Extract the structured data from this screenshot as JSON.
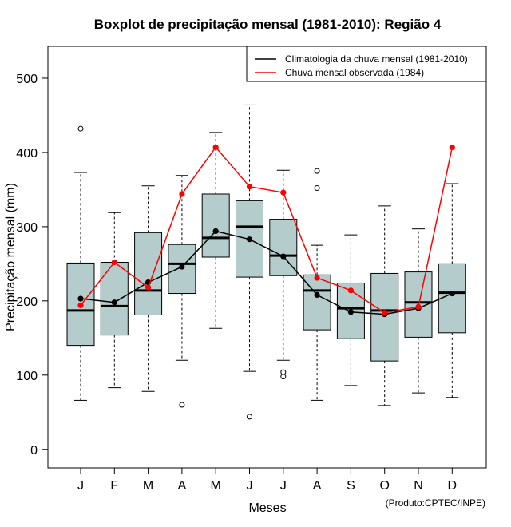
{
  "chart_data": {
    "type": "boxplot",
    "title": "Boxplot de precipitação mensal (1981-2010): Região 4",
    "xlabel": "Meses",
    "ylabel": "Precipitação mensal (mm)",
    "ylim": [
      -25,
      543
    ],
    "yticks": [
      0,
      100,
      200,
      300,
      400,
      500
    ],
    "categories": [
      "J",
      "F",
      "M",
      "A",
      "M",
      "J",
      "J",
      "A",
      "S",
      "O",
      "N",
      "D"
    ],
    "boxes": [
      {
        "whisker_low": 66,
        "q1": 140,
        "median": 187,
        "q3": 251,
        "whisker_high": 373,
        "outliers": [
          432
        ]
      },
      {
        "whisker_low": 83,
        "q1": 154,
        "median": 193,
        "q3": 252,
        "whisker_high": 319,
        "outliers": []
      },
      {
        "whisker_low": 78,
        "q1": 181,
        "median": 214,
        "q3": 292,
        "whisker_high": 355,
        "outliers": []
      },
      {
        "whisker_low": 120,
        "q1": 210,
        "median": 250,
        "q3": 276,
        "whisker_high": 369,
        "outliers": [
          60
        ]
      },
      {
        "whisker_low": 163,
        "q1": 259,
        "median": 285,
        "q3": 344,
        "whisker_high": 427,
        "outliers": []
      },
      {
        "whisker_low": 105,
        "q1": 232,
        "median": 300,
        "q3": 335,
        "whisker_high": 464,
        "outliers": [
          44
        ]
      },
      {
        "whisker_low": 120,
        "q1": 234,
        "median": 261,
        "q3": 310,
        "whisker_high": 376,
        "outliers": [
          104,
          98
        ]
      },
      {
        "whisker_low": 66,
        "q1": 161,
        "median": 214,
        "q3": 235,
        "whisker_high": 275,
        "outliers": [
          375,
          352
        ]
      },
      {
        "whisker_low": 86,
        "q1": 149,
        "median": 190,
        "q3": 224,
        "whisker_high": 289,
        "outliers": []
      },
      {
        "whisker_low": 59,
        "q1": 119,
        "median": 187,
        "q3": 237,
        "whisker_high": 328,
        "outliers": []
      },
      {
        "whisker_low": 76,
        "q1": 151,
        "median": 198,
        "q3": 239,
        "whisker_high": 297,
        "outliers": []
      },
      {
        "whisker_low": 70,
        "q1": 157,
        "median": 211,
        "q3": 250,
        "whisker_high": 358,
        "outliers": []
      }
    ],
    "series": [
      {
        "name": "Climatologia da chuva mensal (1981-2010)",
        "color": "#000000",
        "values": [
          203,
          198,
          225,
          246,
          294,
          283,
          260,
          208,
          185,
          182,
          190,
          210
        ]
      },
      {
        "name": "Chuva mensal observada (1984)",
        "color": "#ff0000",
        "values": [
          194,
          252,
          218,
          344,
          407,
          354,
          346,
          231,
          214,
          184,
          192,
          407
        ]
      }
    ],
    "legend_position": "top-right",
    "box_fill": "#b4cccc",
    "credit": "(Produto:CPTEC/INPE)"
  }
}
